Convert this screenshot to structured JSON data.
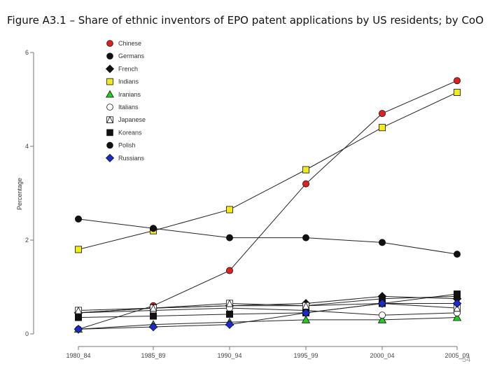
{
  "title": "Figure A3.1 – Share of ethnic inventors of EPO patent applications by US residents; by CoO",
  "slide_number": "54",
  "chart_data": {
    "type": "line",
    "title": "",
    "xlabel": "",
    "ylabel": "Percentage",
    "categories": [
      "1980_84",
      "1985_89",
      "1990_94",
      "1995_99",
      "2000_04",
      "2005_09"
    ],
    "ylim": [
      0,
      6
    ],
    "yticks": [
      0,
      2,
      4,
      6
    ],
    "grid": false,
    "legend_position": "top-left",
    "series": [
      {
        "name": "Chinese",
        "marker": "circle",
        "fill": "#e02020",
        "values": [
          0.1,
          0.6,
          1.35,
          3.2,
          4.7,
          5.4
        ]
      },
      {
        "name": "Germans",
        "marker": "circle",
        "fill": "#111111",
        "values": [
          0.45,
          0.55,
          0.6,
          0.6,
          0.75,
          0.8
        ]
      },
      {
        "name": "French",
        "marker": "diamond",
        "fill": "#111111",
        "values": [
          0.45,
          0.55,
          0.6,
          0.65,
          0.8,
          0.75
        ]
      },
      {
        "name": "Indians",
        "marker": "square",
        "fill": "#f2ea1a",
        "values": [
          1.8,
          2.2,
          2.65,
          3.5,
          4.4,
          5.15
        ]
      },
      {
        "name": "Iranians",
        "marker": "triangle",
        "fill": "#22cc22",
        "values": [
          0.1,
          0.2,
          0.25,
          0.3,
          0.3,
          0.35
        ]
      },
      {
        "name": "Italians",
        "marker": "circle",
        "fill": "#ffffff",
        "values": [
          0.45,
          0.5,
          0.55,
          0.5,
          0.4,
          0.45
        ]
      },
      {
        "name": "Japanese",
        "marker": "triangle-square",
        "fill": "#ffffff",
        "values": [
          0.5,
          0.55,
          0.65,
          0.6,
          0.65,
          0.55
        ]
      },
      {
        "name": "Koreans",
        "marker": "square",
        "fill": "#111111",
        "values": [
          0.35,
          0.38,
          0.42,
          0.45,
          0.65,
          0.85
        ]
      },
      {
        "name": "Polish",
        "marker": "circle",
        "fill": "#111111",
        "values": [
          2.45,
          2.25,
          2.05,
          2.05,
          1.95,
          1.7
        ]
      },
      {
        "name": "Russians",
        "marker": "diamond",
        "fill": "#1a2ad0",
        "values": [
          0.1,
          0.15,
          0.2,
          0.45,
          0.65,
          0.65
        ]
      }
    ]
  }
}
